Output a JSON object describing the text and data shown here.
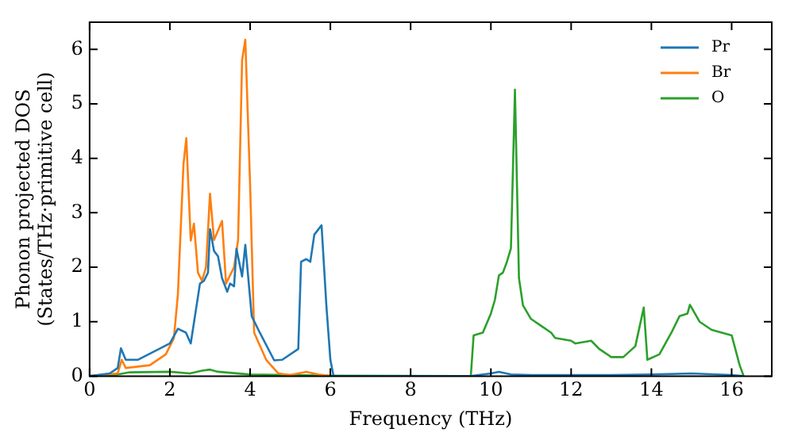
{
  "chart_data": {
    "type": "line",
    "xlabel": "Frequency (THz)",
    "ylabel": "Phonon projected DOS\n(States/THz·primitive cell)",
    "xlim": [
      0,
      17
    ],
    "ylim": [
      0,
      6.5
    ],
    "xticks": [
      0,
      2,
      4,
      6,
      8,
      10,
      12,
      14,
      16
    ],
    "yticks": [
      0,
      1,
      2,
      3,
      4,
      5,
      6
    ],
    "legend": "top right",
    "grid": false,
    "marker": "none",
    "line_style": "solid",
    "series": [
      {
        "name": "Pr",
        "color": "#1f77b4",
        "x": [
          0,
          0.5,
          0.7,
          0.78,
          0.9,
          1.2,
          2.0,
          2.2,
          2.4,
          2.52,
          2.75,
          2.85,
          2.95,
          3.0,
          3.1,
          3.2,
          3.3,
          3.43,
          3.5,
          3.6,
          3.66,
          3.8,
          3.88,
          4.04,
          4.24,
          4.6,
          4.8,
          5.2,
          5.27,
          5.4,
          5.5,
          5.6,
          5.78,
          5.9,
          6.0,
          6.08,
          9.5,
          10.0,
          10.2,
          10.5,
          11,
          13,
          14,
          15,
          16,
          16.3
        ],
        "values": [
          0,
          0.05,
          0.15,
          0.51,
          0.3,
          0.3,
          0.6,
          0.87,
          0.8,
          0.6,
          1.7,
          1.75,
          1.9,
          2.7,
          2.3,
          2.2,
          1.8,
          1.55,
          1.7,
          1.65,
          2.34,
          1.83,
          2.41,
          1.1,
          0.8,
          0.29,
          0.3,
          0.5,
          2.1,
          2.15,
          2.1,
          2.6,
          2.77,
          1.3,
          0.3,
          0,
          0,
          0.05,
          0.08,
          0.03,
          0.02,
          0.02,
          0.03,
          0.05,
          0.02,
          0
        ]
      },
      {
        "name": "Br",
        "color": "#ff7f0e",
        "x": [
          0,
          0.7,
          0.8,
          0.9,
          1.5,
          1.9,
          2.1,
          2.2,
          2.34,
          2.41,
          2.52,
          2.6,
          2.7,
          2.8,
          2.9,
          3.0,
          3.1,
          3.3,
          3.4,
          3.6,
          3.7,
          3.8,
          3.88,
          4.0,
          4.1,
          4.4,
          4.7,
          5.0,
          5.4,
          5.7,
          6.0
        ],
        "values": [
          0,
          0.05,
          0.3,
          0.15,
          0.2,
          0.4,
          0.7,
          1.5,
          3.9,
          4.37,
          2.49,
          2.8,
          1.9,
          1.75,
          2.0,
          3.35,
          2.5,
          2.85,
          1.7,
          2.0,
          2.5,
          5.8,
          6.18,
          3.5,
          0.8,
          0.3,
          0.05,
          0.02,
          0.08,
          0.03,
          0
        ]
      },
      {
        "name": "O",
        "color": "#2ca02c",
        "x": [
          0,
          0.7,
          1,
          2,
          2.5,
          2.8,
          3.0,
          3.2,
          4,
          6,
          9.5,
          9.57,
          9.8,
          10.0,
          10.1,
          10.2,
          10.3,
          10.4,
          10.5,
          10.6,
          10.7,
          10.8,
          11,
          11.3,
          11.5,
          11.6,
          12,
          12.1,
          12.5,
          12.7,
          13,
          13.3,
          13.6,
          13.81,
          13.9,
          14.2,
          14.5,
          14.7,
          14.9,
          14.96,
          15.2,
          15.5,
          16,
          16.2,
          16.3
        ],
        "values": [
          0,
          0.03,
          0.07,
          0.08,
          0.05,
          0.1,
          0.12,
          0.08,
          0.03,
          0.01,
          0,
          0.75,
          0.8,
          1.15,
          1.4,
          1.85,
          1.9,
          2.1,
          2.35,
          5.26,
          1.8,
          1.3,
          1.05,
          0.9,
          0.8,
          0.7,
          0.65,
          0.6,
          0.65,
          0.5,
          0.35,
          0.35,
          0.55,
          1.26,
          0.3,
          0.4,
          0.8,
          1.1,
          1.15,
          1.31,
          1.0,
          0.85,
          0.75,
          0.2,
          0
        ]
      }
    ]
  }
}
